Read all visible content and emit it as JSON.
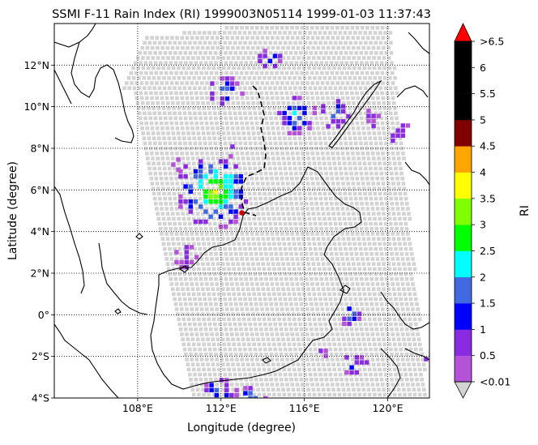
{
  "title": "SSMI F-11 Rain Index (RI) 1999003N05114 1999-01-03 11:37:43",
  "map": {
    "xlabel": "Longitude (degree)",
    "ylabel": "Latitude (degree)",
    "lon_range": [
      104.0,
      122.0
    ],
    "lat_range": [
      -4.0,
      14.0
    ],
    "lon_ticks": [
      {
        "value": 108,
        "label": "108°E"
      },
      {
        "value": 112,
        "label": "112°E"
      },
      {
        "value": 116,
        "label": "116°E"
      },
      {
        "value": 120,
        "label": "120°E"
      }
    ],
    "lat_ticks": [
      {
        "value": -4,
        "label": "4°S"
      },
      {
        "value": -2,
        "label": "2°S"
      },
      {
        "value": 0,
        "label": "0°"
      },
      {
        "value": 2,
        "label": "2°N"
      },
      {
        "value": 4,
        "label": "4°N"
      },
      {
        "value": 6,
        "label": "6°N"
      },
      {
        "value": 8,
        "label": "8°N"
      },
      {
        "value": 10,
        "label": "10°N"
      },
      {
        "value": 12,
        "label": "12°N"
      }
    ],
    "grid": "dotted",
    "swath_color": "#d3d3d3",
    "storm_center": {
      "lon": 113.0,
      "lat": 4.9,
      "color": "#cc0000"
    }
  },
  "colorbar": {
    "label": "RI",
    "colors": [
      "#b452d8",
      "#8a2be2",
      "#0000ff",
      "#4169e1",
      "#00ffff",
      "#00ff00",
      "#7fff00",
      "#ffff00",
      "#ffd700",
      "#ffa500",
      "#800000",
      "#000000",
      "#000000",
      "#000000",
      "#ff0000",
      "#d3d3d3"
    ],
    "segment_colors": [
      "#b452d8",
      "#8a2be2",
      "#0000ff",
      "#4169e1",
      "#00ffff",
      "#00ff00",
      "#7fff00",
      "#ffff00",
      "#ffa500",
      "#800000",
      "#000000",
      "#000000",
      "#000000"
    ],
    "over_color": "#ff0000",
    "under_color": "#d3d3d3",
    "tick_labels": [
      ">6.5",
      "6",
      "5.5",
      "5",
      "4.5",
      "4",
      "3.5",
      "3",
      "2.5",
      "2",
      "1.5",
      "1",
      "0.5",
      "<0.01"
    ]
  }
}
